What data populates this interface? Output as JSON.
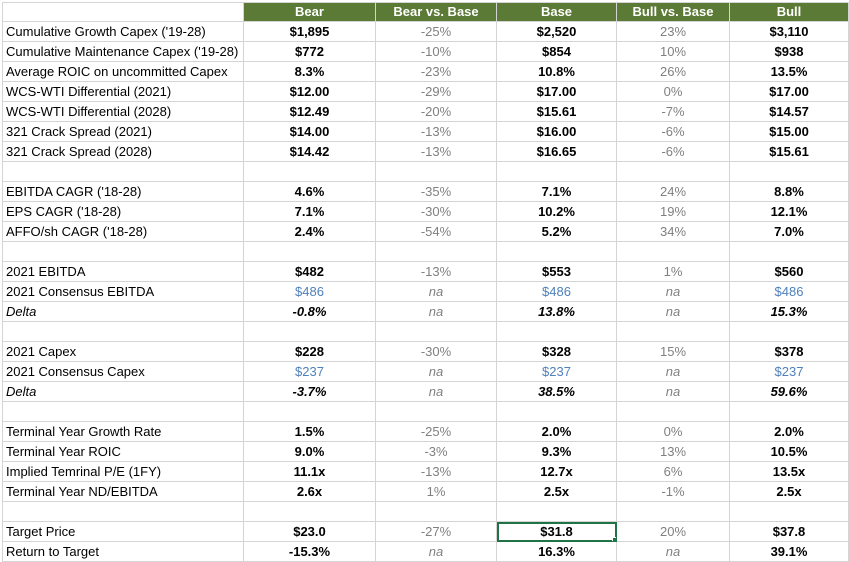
{
  "columns": [
    "Bear",
    "Bear vs. Base",
    "Base",
    "Bull vs. Base",
    "Bull"
  ],
  "rows": [
    {
      "label": "Cumulative Growth Capex ('19-28)",
      "bear": "$1,895",
      "bvb": "-25%",
      "base": "$2,520",
      "bullvb": "23%",
      "bull": "$3,110"
    },
    {
      "label": "Cumulative Maintenance Capex ('19-28)",
      "bear": "$772",
      "bvb": "-10%",
      "base": "$854",
      "bullvb": "10%",
      "bull": "$938"
    },
    {
      "label": "Average ROIC on uncommitted Capex",
      "bear": "8.3%",
      "bvb": "-23%",
      "base": "10.8%",
      "bullvb": "26%",
      "bull": "13.5%"
    },
    {
      "label": "WCS-WTI Differential (2021)",
      "bear": "$12.00",
      "bvb": "-29%",
      "base": "$17.00",
      "bullvb": "0%",
      "bull": "$17.00"
    },
    {
      "label": "WCS-WTI Differential (2028)",
      "bear": "$12.49",
      "bvb": "-20%",
      "base": "$15.61",
      "bullvb": "-7%",
      "bull": "$14.57"
    },
    {
      "label": "321 Crack Spread (2021)",
      "bear": "$14.00",
      "bvb": "-13%",
      "base": "$16.00",
      "bullvb": "-6%",
      "bull": "$15.00"
    },
    {
      "label": "321 Crack Spread (2028)",
      "bear": "$14.42",
      "bvb": "-13%",
      "base": "$16.65",
      "bullvb": "-6%",
      "bull": "$15.61"
    },
    {
      "label": "EBITDA CAGR ('18-28)",
      "bear": "4.6%",
      "bvb": "-35%",
      "base": "7.1%",
      "bullvb": "24%",
      "bull": "8.8%"
    },
    {
      "label": "EPS CAGR ('18-28)",
      "bear": "7.1%",
      "bvb": "-30%",
      "base": "10.2%",
      "bullvb": "19%",
      "bull": "12.1%"
    },
    {
      "label": "AFFO/sh CAGR ('18-28)",
      "bear": "2.4%",
      "bvb": "-54%",
      "base": "5.2%",
      "bullvb": "34%",
      "bull": "7.0%"
    },
    {
      "label": "2021 EBITDA",
      "bear": "$482",
      "bvb": "-13%",
      "base": "$553",
      "bullvb": "1%",
      "bull": "$560"
    },
    {
      "label": "2021 Consensus EBITDA",
      "bear": "$486",
      "bvb": "na",
      "base": "$486",
      "bullvb": "na",
      "bull": "$486"
    },
    {
      "label": "Delta",
      "bear": "-0.8%",
      "bvb": "na",
      "base": "13.8%",
      "bullvb": "na",
      "bull": "15.3%"
    },
    {
      "label": "2021 Capex",
      "bear": "$228",
      "bvb": "-30%",
      "base": "$328",
      "bullvb": "15%",
      "bull": "$378"
    },
    {
      "label": "2021 Consensus Capex",
      "bear": "$237",
      "bvb": "na",
      "base": "$237",
      "bullvb": "na",
      "bull": "$237"
    },
    {
      "label": "Delta",
      "bear": "-3.7%",
      "bvb": "na",
      "base": "38.5%",
      "bullvb": "na",
      "bull": "59.6%"
    },
    {
      "label": "Terminal Year Growth Rate",
      "bear": "1.5%",
      "bvb": "-25%",
      "base": "2.0%",
      "bullvb": "0%",
      "bull": "2.0%"
    },
    {
      "label": "Terminal Year ROIC",
      "bear": "9.0%",
      "bvb": "-3%",
      "base": "9.3%",
      "bullvb": "13%",
      "bull": "10.5%"
    },
    {
      "label": "Implied Temrinal P/E (1FY)",
      "bear": "11.1x",
      "bvb": "-13%",
      "base": "12.7x",
      "bullvb": "6%",
      "bull": "13.5x"
    },
    {
      "label": "Terminal Year ND/EBITDA",
      "bear": "2.6x",
      "bvb": "1%",
      "base": "2.5x",
      "bullvb": "-1%",
      "bull": "2.5x"
    },
    {
      "label": "Target Price",
      "bear": "$23.0",
      "bvb": "-27%",
      "base": "$31.8",
      "bullvb": "20%",
      "bull": "$37.8"
    },
    {
      "label": "Return to Target",
      "bear": "-15.3%",
      "bvb": "na",
      "base": "16.3%",
      "bullvb": "na",
      "bull": "39.1%"
    }
  ],
  "colors": {
    "header_bg": "#5b7a35",
    "header_text": "#ffffff",
    "consensus_text": "#4f81bd",
    "delta_text": "#808080",
    "selection": "#217346"
  }
}
